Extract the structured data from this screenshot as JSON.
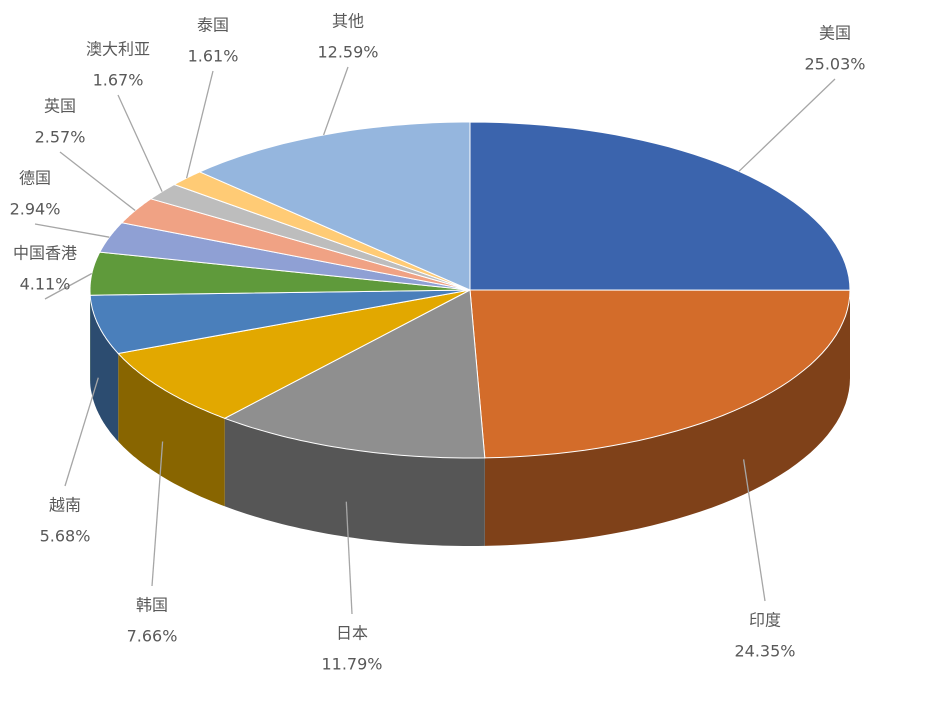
{
  "chart_data": {
    "type": "pie",
    "categories": [
      "美国",
      "印度",
      "日本",
      "韩国",
      "越南",
      "中国香港",
      "德国",
      "英国",
      "澳大利亚",
      "泰国",
      "其他"
    ],
    "values": [
      25.03,
      24.35,
      11.79,
      7.66,
      5.68,
      4.11,
      2.94,
      2.57,
      1.67,
      1.61,
      12.59
    ],
    "value_labels": [
      "25.03%",
      "24.35%",
      "11.79%",
      "7.66%",
      "5.68%",
      "4.11%",
      "2.94%",
      "2.57%",
      "1.67%",
      "1.61%",
      "12.59%"
    ],
    "colors": [
      "#3b64ad",
      "#d36c2a",
      "#8f8f8f",
      "#e2a800",
      "#4a7fbb",
      "#5f9a3b",
      "#8fa0d4",
      "#f0a284",
      "#bdbdbd",
      "#ffcb75",
      "#95b6de"
    ]
  }
}
